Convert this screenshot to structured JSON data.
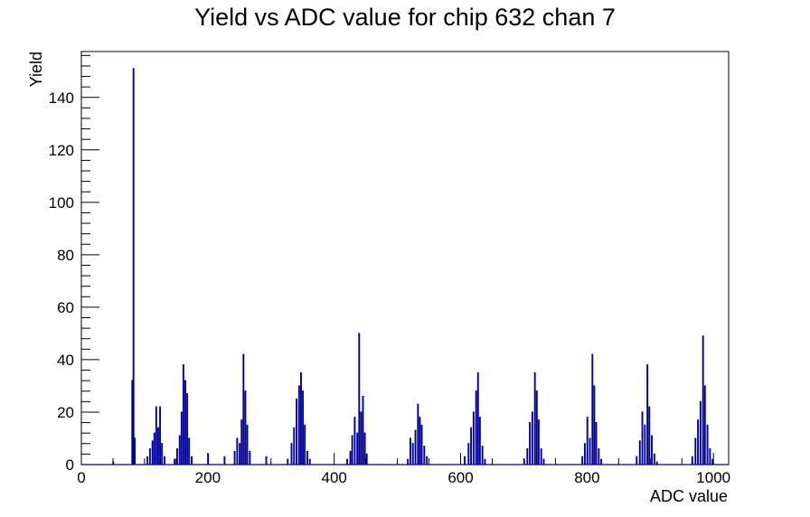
{
  "chart_data": {
    "type": "histogram",
    "title": "Yield vs ADC value for chip 632 chan 7",
    "xlabel": "ADC value",
    "ylabel": "Yield",
    "xlim": [
      0,
      1024
    ],
    "ylim": [
      0,
      157.5
    ],
    "x_ticks": [
      0,
      200,
      400,
      600,
      800,
      1000
    ],
    "y_ticks": [
      0,
      20,
      40,
      60,
      80,
      100,
      120,
      140
    ],
    "grid": false,
    "legend": "none",
    "line_color": "#000099",
    "bins": [
      {
        "x": 50,
        "y": 1
      },
      {
        "x": 80,
        "y": 32
      },
      {
        "x": 82,
        "y": 151
      },
      {
        "x": 84,
        "y": 10
      },
      {
        "x": 104,
        "y": 3
      },
      {
        "x": 108,
        "y": 6
      },
      {
        "x": 112,
        "y": 9
      },
      {
        "x": 115,
        "y": 12
      },
      {
        "x": 118,
        "y": 22
      },
      {
        "x": 121,
        "y": 14
      },
      {
        "x": 124,
        "y": 22
      },
      {
        "x": 127,
        "y": 8
      },
      {
        "x": 131,
        "y": 3
      },
      {
        "x": 147,
        "y": 2
      },
      {
        "x": 151,
        "y": 6
      },
      {
        "x": 155,
        "y": 11
      },
      {
        "x": 158,
        "y": 20
      },
      {
        "x": 161,
        "y": 38
      },
      {
        "x": 164,
        "y": 32
      },
      {
        "x": 167,
        "y": 27
      },
      {
        "x": 170,
        "y": 10
      },
      {
        "x": 174,
        "y": 3
      },
      {
        "x": 200,
        "y": 4
      },
      {
        "x": 226,
        "y": 3
      },
      {
        "x": 242,
        "y": 5
      },
      {
        "x": 246,
        "y": 10
      },
      {
        "x": 250,
        "y": 8
      },
      {
        "x": 253,
        "y": 17
      },
      {
        "x": 256,
        "y": 42
      },
      {
        "x": 259,
        "y": 28
      },
      {
        "x": 262,
        "y": 15
      },
      {
        "x": 266,
        "y": 5
      },
      {
        "x": 292,
        "y": 3
      },
      {
        "x": 326,
        "y": 2
      },
      {
        "x": 332,
        "y": 8
      },
      {
        "x": 336,
        "y": 14
      },
      {
        "x": 340,
        "y": 25
      },
      {
        "x": 344,
        "y": 30
      },
      {
        "x": 347,
        "y": 35
      },
      {
        "x": 350,
        "y": 28
      },
      {
        "x": 353,
        "y": 15
      },
      {
        "x": 357,
        "y": 5
      },
      {
        "x": 361,
        "y": 2
      },
      {
        "x": 420,
        "y": 2
      },
      {
        "x": 425,
        "y": 5
      },
      {
        "x": 428,
        "y": 11
      },
      {
        "x": 432,
        "y": 18
      },
      {
        "x": 436,
        "y": 12
      },
      {
        "x": 439,
        "y": 50
      },
      {
        "x": 442,
        "y": 20
      },
      {
        "x": 445,
        "y": 26
      },
      {
        "x": 448,
        "y": 12
      },
      {
        "x": 451,
        "y": 4
      },
      {
        "x": 516,
        "y": 2
      },
      {
        "x": 520,
        "y": 10
      },
      {
        "x": 524,
        "y": 8
      },
      {
        "x": 528,
        "y": 13
      },
      {
        "x": 532,
        "y": 23
      },
      {
        "x": 535,
        "y": 18
      },
      {
        "x": 538,
        "y": 15
      },
      {
        "x": 542,
        "y": 7
      },
      {
        "x": 546,
        "y": 3
      },
      {
        "x": 606,
        "y": 3
      },
      {
        "x": 612,
        "y": 8
      },
      {
        "x": 616,
        "y": 14
      },
      {
        "x": 620,
        "y": 20
      },
      {
        "x": 624,
        "y": 28
      },
      {
        "x": 627,
        "y": 35
      },
      {
        "x": 630,
        "y": 18
      },
      {
        "x": 634,
        "y": 7
      },
      {
        "x": 638,
        "y": 2
      },
      {
        "x": 700,
        "y": 2
      },
      {
        "x": 705,
        "y": 6
      },
      {
        "x": 709,
        "y": 16
      },
      {
        "x": 713,
        "y": 20
      },
      {
        "x": 717,
        "y": 35
      },
      {
        "x": 720,
        "y": 28
      },
      {
        "x": 723,
        "y": 17
      },
      {
        "x": 727,
        "y": 6
      },
      {
        "x": 731,
        "y": 2
      },
      {
        "x": 792,
        "y": 3
      },
      {
        "x": 796,
        "y": 8
      },
      {
        "x": 800,
        "y": 18
      },
      {
        "x": 804,
        "y": 10
      },
      {
        "x": 808,
        "y": 42
      },
      {
        "x": 811,
        "y": 30
      },
      {
        "x": 814,
        "y": 16
      },
      {
        "x": 818,
        "y": 6
      },
      {
        "x": 822,
        "y": 2
      },
      {
        "x": 878,
        "y": 3
      },
      {
        "x": 883,
        "y": 9
      },
      {
        "x": 887,
        "y": 20
      },
      {
        "x": 891,
        "y": 15
      },
      {
        "x": 895,
        "y": 38
      },
      {
        "x": 898,
        "y": 22
      },
      {
        "x": 902,
        "y": 11
      },
      {
        "x": 906,
        "y": 4
      },
      {
        "x": 910,
        "y": 1
      },
      {
        "x": 966,
        "y": 3
      },
      {
        "x": 971,
        "y": 10
      },
      {
        "x": 975,
        "y": 17
      },
      {
        "x": 979,
        "y": 24
      },
      {
        "x": 983,
        "y": 49
      },
      {
        "x": 986,
        "y": 30
      },
      {
        "x": 990,
        "y": 15
      },
      {
        "x": 994,
        "y": 6
      },
      {
        "x": 998,
        "y": 2
      }
    ]
  }
}
